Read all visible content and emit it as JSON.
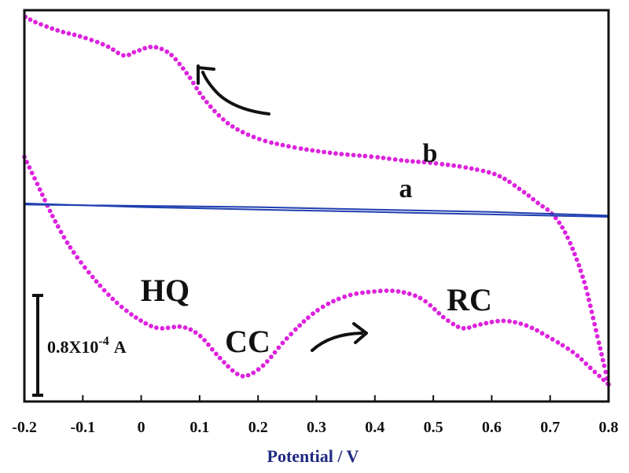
{
  "chart_data": {
    "type": "line",
    "title": "",
    "xlabel": "Potential / V",
    "ylabel": "",
    "xlim": [
      -0.2,
      0.8
    ],
    "ylim": [
      -1.6,
      1.6
    ],
    "x_ticks": [
      "-0.2",
      "-0.1",
      "0",
      "0.1",
      "0.2",
      "0.3",
      "0.4",
      "0.5",
      "0.6",
      "0.7",
      "0.8"
    ],
    "grid": false,
    "scale_bar": {
      "label_base": "0.8X10",
      "label_exp": "-4",
      "label_unit": "A",
      "value": 0.8
    },
    "peak_labels": [
      "HQ",
      "CC",
      "RC"
    ],
    "series": [
      {
        "name": "a",
        "label": "a",
        "color": "#1f3fb0",
        "style": "solid",
        "forward": [
          {
            "x": -0.2,
            "y": 0.02
          },
          {
            "x": 0.0,
            "y": -0.01
          },
          {
            "x": 0.2,
            "y": -0.03
          },
          {
            "x": 0.4,
            "y": -0.05
          },
          {
            "x": 0.6,
            "y": -0.07
          },
          {
            "x": 0.8,
            "y": -0.09
          }
        ],
        "reverse": [
          {
            "x": 0.8,
            "y": -0.08
          },
          {
            "x": 0.6,
            "y": -0.05
          },
          {
            "x": 0.4,
            "y": -0.03
          },
          {
            "x": 0.2,
            "y": -0.01
          },
          {
            "x": 0.0,
            "y": 0.0
          },
          {
            "x": -0.2,
            "y": 0.01
          }
        ]
      },
      {
        "name": "b",
        "label": "b",
        "color": "#dd22dd",
        "style": "dotted",
        "anodic": [
          {
            "x": -0.2,
            "y": 0.4
          },
          {
            "x": -0.18,
            "y": 0.2
          },
          {
            "x": -0.15,
            "y": -0.1
          },
          {
            "x": -0.12,
            "y": -0.35
          },
          {
            "x": -0.08,
            "y": -0.6
          },
          {
            "x": -0.04,
            "y": -0.8
          },
          {
            "x": 0.0,
            "y": -0.94
          },
          {
            "x": 0.03,
            "y": -1.0
          },
          {
            "x": 0.07,
            "y": -0.99
          },
          {
            "x": 0.1,
            "y": -1.06
          },
          {
            "x": 0.13,
            "y": -1.22
          },
          {
            "x": 0.16,
            "y": -1.36
          },
          {
            "x": 0.18,
            "y": -1.39
          },
          {
            "x": 0.21,
            "y": -1.3
          },
          {
            "x": 0.25,
            "y": -1.08
          },
          {
            "x": 0.3,
            "y": -0.86
          },
          {
            "x": 0.35,
            "y": -0.74
          },
          {
            "x": 0.4,
            "y": -0.7
          },
          {
            "x": 0.44,
            "y": -0.7
          },
          {
            "x": 0.48,
            "y": -0.76
          },
          {
            "x": 0.52,
            "y": -0.92
          },
          {
            "x": 0.55,
            "y": -1.0
          },
          {
            "x": 0.58,
            "y": -0.97
          },
          {
            "x": 0.62,
            "y": -0.94
          },
          {
            "x": 0.66,
            "y": -0.98
          },
          {
            "x": 0.7,
            "y": -1.08
          },
          {
            "x": 0.74,
            "y": -1.2
          },
          {
            "x": 0.77,
            "y": -1.33
          },
          {
            "x": 0.8,
            "y": -1.46
          }
        ],
        "cathodic": [
          {
            "x": 0.8,
            "y": -1.46
          },
          {
            "x": 0.78,
            "y": -1.05
          },
          {
            "x": 0.76,
            "y": -0.65
          },
          {
            "x": 0.74,
            "y": -0.37
          },
          {
            "x": 0.72,
            "y": -0.17
          },
          {
            "x": 0.7,
            "y": -0.05
          },
          {
            "x": 0.68,
            "y": 0.02
          },
          {
            "x": 0.65,
            "y": 0.13
          },
          {
            "x": 0.61,
            "y": 0.25
          },
          {
            "x": 0.56,
            "y": 0.31
          },
          {
            "x": 0.5,
            "y": 0.35
          },
          {
            "x": 0.45,
            "y": 0.37
          },
          {
            "x": 0.4,
            "y": 0.4
          },
          {
            "x": 0.33,
            "y": 0.43
          },
          {
            "x": 0.26,
            "y": 0.48
          },
          {
            "x": 0.2,
            "y": 0.55
          },
          {
            "x": 0.15,
            "y": 0.67
          },
          {
            "x": 0.11,
            "y": 0.86
          },
          {
            "x": 0.08,
            "y": 1.07
          },
          {
            "x": 0.05,
            "y": 1.24
          },
          {
            "x": 0.02,
            "y": 1.3
          },
          {
            "x": -0.01,
            "y": 1.26
          },
          {
            "x": -0.03,
            "y": 1.23
          },
          {
            "x": -0.06,
            "y": 1.31
          },
          {
            "x": -0.1,
            "y": 1.38
          },
          {
            "x": -0.14,
            "y": 1.43
          },
          {
            "x": -0.18,
            "y": 1.5
          },
          {
            "x": -0.2,
            "y": 1.55
          }
        ]
      }
    ]
  }
}
